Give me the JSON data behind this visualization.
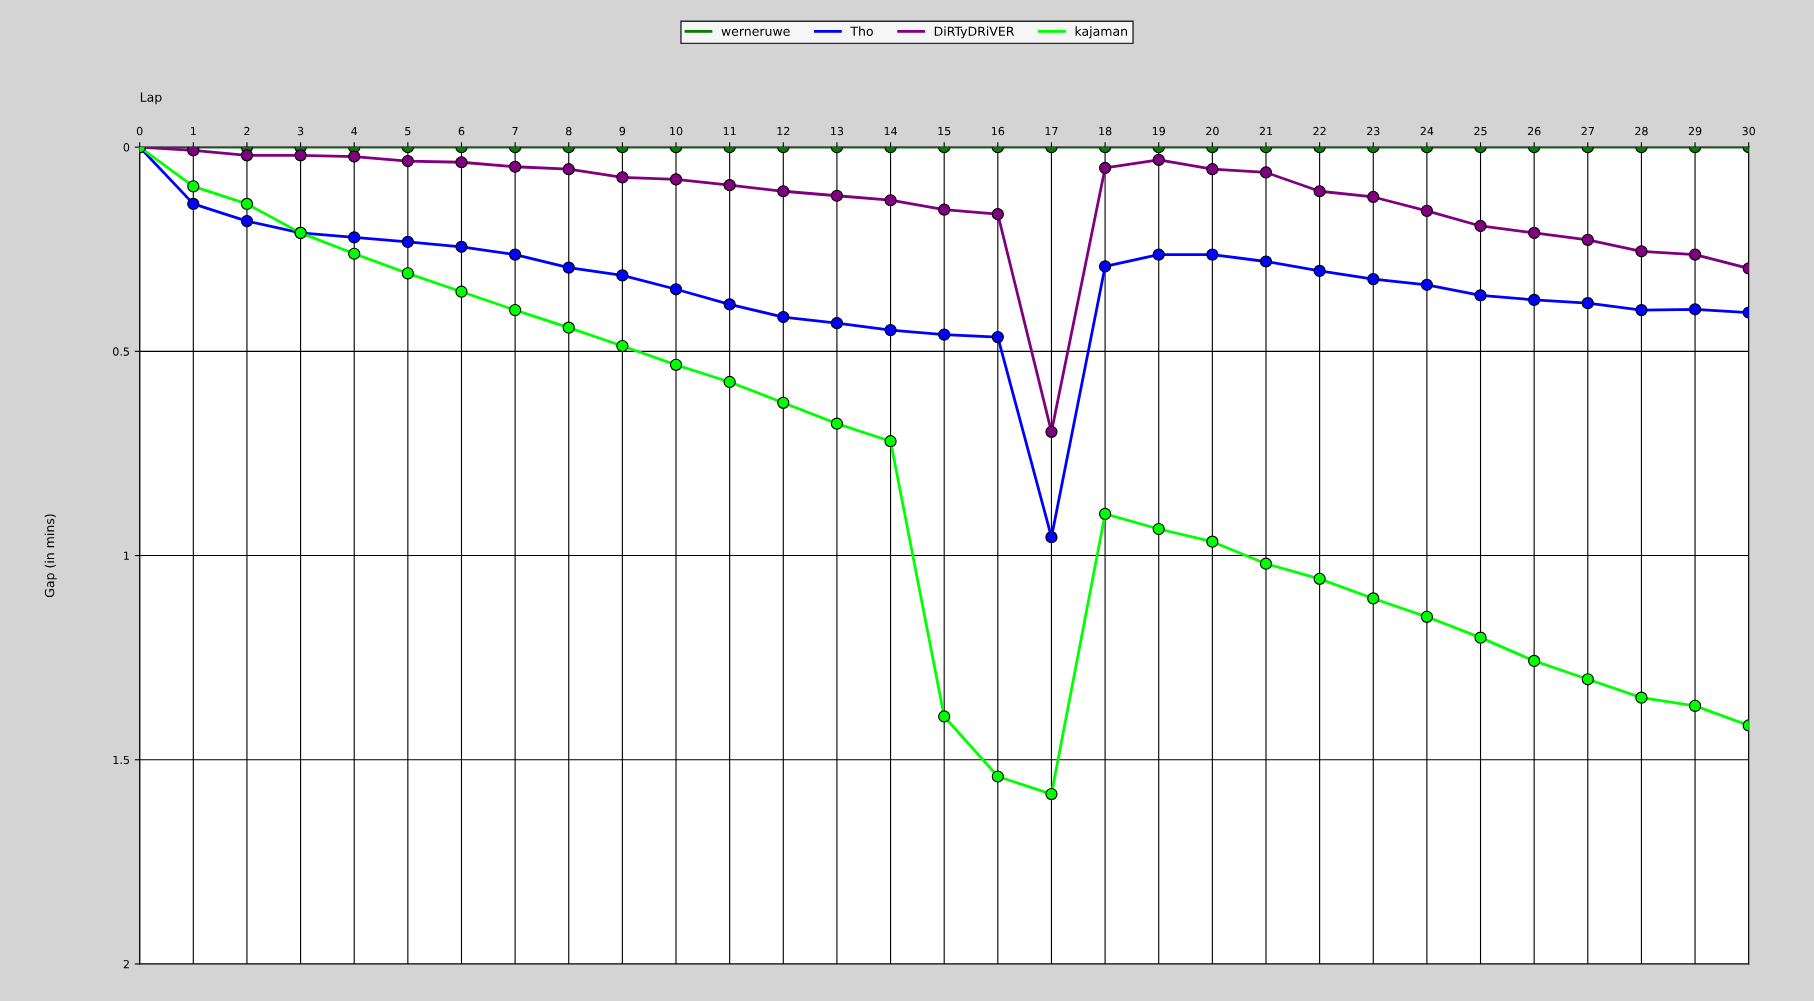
{
  "chart_data": {
    "type": "line",
    "xlabel": "Lap",
    "ylabel": "Gap (in mins)",
    "x": [
      0,
      1,
      2,
      3,
      4,
      5,
      6,
      7,
      8,
      9,
      10,
      11,
      12,
      13,
      14,
      15,
      16,
      17,
      18,
      19,
      20,
      21,
      22,
      23,
      24,
      25,
      26,
      27,
      28,
      29,
      30
    ],
    "series": [
      {
        "name": "werneruwe",
        "color": "#008000",
        "values": [
          0,
          0,
          0,
          0,
          0,
          0,
          0,
          0,
          0,
          0,
          0,
          0,
          0,
          0,
          0,
          0,
          0,
          0,
          0,
          0,
          0,
          0,
          0,
          0,
          0,
          0,
          0,
          0,
          0,
          0,
          0
        ]
      },
      {
        "name": "Tho",
        "color": "#0000ff",
        "values": [
          0,
          0.139,
          0.181,
          0.21,
          0.221,
          0.232,
          0.244,
          0.263,
          0.295,
          0.314,
          0.348,
          0.385,
          0.416,
          0.431,
          0.448,
          0.459,
          0.465,
          0.955,
          0.292,
          0.263,
          0.263,
          0.28,
          0.303,
          0.323,
          0.337,
          0.363,
          0.374,
          0.382,
          0.399,
          0.397,
          0.405
        ]
      },
      {
        "name": "DiRTyDRiVER",
        "color": "#800080",
        "values": [
          0,
          0.008,
          0.02,
          0.02,
          0.023,
          0.034,
          0.037,
          0.048,
          0.054,
          0.074,
          0.079,
          0.093,
          0.108,
          0.119,
          0.13,
          0.153,
          0.164,
          0.697,
          0.051,
          0.031,
          0.054,
          0.062,
          0.108,
          0.122,
          0.156,
          0.193,
          0.21,
          0.227,
          0.255,
          0.263,
          0.297
        ]
      },
      {
        "name": "kajaman",
        "color": "#00ff00",
        "values": [
          0,
          0.096,
          0.139,
          0.21,
          0.261,
          0.309,
          0.354,
          0.399,
          0.442,
          0.487,
          0.533,
          0.575,
          0.626,
          0.677,
          0.72,
          1.394,
          1.541,
          1.584,
          0.898,
          0.935,
          0.966,
          1.02,
          1.057,
          1.105,
          1.15,
          1.201,
          1.258,
          1.303,
          1.348,
          1.368,
          1.416
        ]
      }
    ],
    "xlim": [
      0,
      30
    ],
    "xticks": [
      0,
      1,
      2,
      3,
      4,
      5,
      6,
      7,
      8,
      9,
      10,
      11,
      12,
      13,
      14,
      15,
      16,
      17,
      18,
      19,
      20,
      21,
      22,
      23,
      24,
      25,
      26,
      27,
      28,
      29,
      30
    ],
    "ylim": [
      2,
      0
    ],
    "yticks": [
      0,
      0.5,
      1,
      1.5,
      2
    ],
    "grid": true,
    "legend": "top",
    "marker": "circle",
    "line_style": "solid"
  }
}
